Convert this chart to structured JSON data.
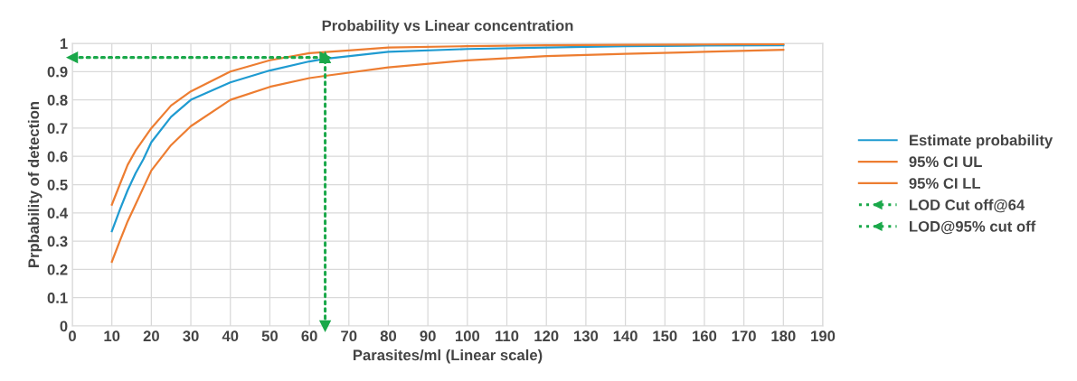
{
  "chart_data": {
    "type": "line",
    "title": "Probability vs Linear concentration",
    "xlabel": "Parasites/ml (Linear scale)",
    "ylabel": "Prpbability of detection",
    "xlim": [
      0,
      190
    ],
    "xticks": [
      0,
      10,
      20,
      30,
      40,
      50,
      60,
      70,
      80,
      90,
      100,
      110,
      120,
      130,
      140,
      150,
      160,
      170,
      180,
      190
    ],
    "ylim": [
      0,
      1
    ],
    "yticks": [
      0,
      0.1,
      0.2,
      0.3,
      0.4,
      0.5,
      0.6,
      0.7,
      0.8,
      0.9,
      1
    ],
    "grid": true,
    "legend": "right",
    "series": [
      {
        "name": "Estimate probability",
        "color": "#1f9bd1",
        "x": [
          10,
          12,
          14,
          16,
          18,
          20,
          25,
          30,
          40,
          50,
          60,
          64,
          80,
          100,
          120,
          140,
          160,
          180
        ],
        "values": [
          0.335,
          0.41,
          0.48,
          0.54,
          0.59,
          0.65,
          0.74,
          0.8,
          0.862,
          0.904,
          0.936,
          0.945,
          0.97,
          0.98,
          0.985,
          0.99,
          0.992,
          0.993
        ]
      },
      {
        "name": "95% CI UL",
        "color": "#ed7d31",
        "x": [
          10,
          12,
          14,
          16,
          18,
          20,
          25,
          30,
          40,
          50,
          60,
          70,
          80,
          100,
          120,
          140,
          160,
          180
        ],
        "values": [
          0.429,
          0.5,
          0.57,
          0.62,
          0.66,
          0.7,
          0.78,
          0.83,
          0.9,
          0.94,
          0.965,
          0.975,
          0.985,
          0.99,
          0.993,
          0.995,
          0.996,
          0.997
        ]
      },
      {
        "name": "95% CI LL",
        "color": "#ed7d31",
        "x": [
          10,
          12,
          14,
          16,
          18,
          20,
          25,
          30,
          40,
          50,
          60,
          64,
          80,
          100,
          120,
          140,
          160,
          180
        ],
        "values": [
          0.227,
          0.3,
          0.37,
          0.43,
          0.49,
          0.55,
          0.64,
          0.707,
          0.8,
          0.846,
          0.877,
          0.885,
          0.915,
          0.94,
          0.955,
          0.963,
          0.97,
          0.977
        ]
      },
      {
        "name": "LOD Cut off@64",
        "color": "#1aa84a",
        "line_style": "dotted",
        "marker": "triangle",
        "x": [
          64,
          64
        ],
        "values": [
          0,
          0.95
        ]
      },
      {
        "name": "LOD@95% cut off",
        "color": "#1aa84a",
        "line_style": "dotted",
        "marker": "triangle",
        "x": [
          0,
          64
        ],
        "values": [
          0.95,
          0.95
        ]
      }
    ]
  }
}
